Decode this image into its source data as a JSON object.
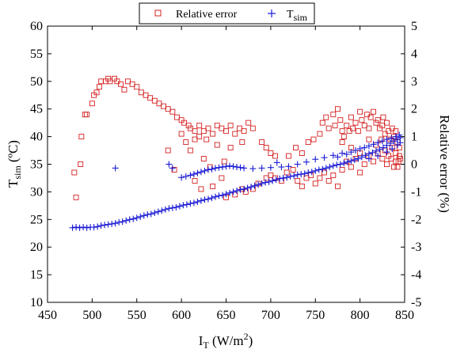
{
  "chart_data": {
    "type": "scatter",
    "xlabel": "I",
    "xlabel_sub": "T",
    "xlabel_unit": " (W/m",
    "xlabel_sup": "2",
    "xlabel_close": ")",
    "ylabel_left": "T",
    "ylabel_left_sub": "sim",
    "ylabel_left_unit": " (ºC)",
    "ylabel_right": "Relative error (%)",
    "xlim": [
      450,
      850
    ],
    "ylim_left": [
      10,
      60
    ],
    "ylim_right": [
      -5,
      5
    ],
    "xticks": [
      "450",
      "500",
      "550",
      "600",
      "650",
      "700",
      "750",
      "800",
      "850"
    ],
    "yticks_left": [
      "10",
      "15",
      "20",
      "25",
      "30",
      "35",
      "40",
      "45",
      "50",
      "55",
      "60"
    ],
    "yticks_right": [
      "-5",
      "-4",
      "-3",
      "-2",
      "-1",
      "0",
      "1",
      "2",
      "3",
      "4",
      "5"
    ],
    "grid": false,
    "legend_position": "top-center",
    "series": [
      {
        "name": "Relative error",
        "name_sub": "",
        "axis": "right",
        "marker": "square",
        "color": "#d42020",
        "points": [
          [
            480,
            -0.3
          ],
          [
            482,
            -1.2
          ],
          [
            487,
            0.0
          ],
          [
            488,
            1.0
          ],
          [
            492,
            1.8
          ],
          [
            494,
            1.8
          ],
          [
            500,
            2.2
          ],
          [
            502,
            2.5
          ],
          [
            505,
            2.6
          ],
          [
            508,
            2.8
          ],
          [
            510,
            3.0
          ],
          [
            515,
            3.0
          ],
          [
            518,
            3.1
          ],
          [
            520,
            3.0
          ],
          [
            525,
            3.1
          ],
          [
            528,
            3.0
          ],
          [
            532,
            2.9
          ],
          [
            536,
            2.7
          ],
          [
            540,
            3.0
          ],
          [
            545,
            2.9
          ],
          [
            550,
            2.8
          ],
          [
            555,
            2.6
          ],
          [
            560,
            2.5
          ],
          [
            565,
            2.4
          ],
          [
            570,
            2.3
          ],
          [
            575,
            2.2
          ],
          [
            580,
            2.1
          ],
          [
            585,
            2.0
          ],
          [
            590,
            1.9
          ],
          [
            595,
            1.7
          ],
          [
            600,
            1.6
          ],
          [
            603,
            1.5
          ],
          [
            608,
            1.4
          ],
          [
            610,
            1.3
          ],
          [
            615,
            1.2
          ],
          [
            620,
            1.4
          ],
          [
            625,
            1.2
          ],
          [
            630,
            1.3
          ],
          [
            635,
            1.1
          ],
          [
            640,
            1.4
          ],
          [
            645,
            1.3
          ],
          [
            650,
            1.2
          ],
          [
            655,
            1.4
          ],
          [
            660,
            1.1
          ],
          [
            665,
            1.3
          ],
          [
            670,
            1.2
          ],
          [
            675,
            1.5
          ],
          [
            680,
            1.3
          ],
          [
            600,
            1.1
          ],
          [
            605,
            0.8
          ],
          [
            615,
            0.9
          ],
          [
            620,
            1.0
          ],
          [
            628,
            0.9
          ],
          [
            640,
            0.7
          ],
          [
            655,
            0.6
          ],
          [
            668,
            0.8
          ],
          [
            690,
            0.8
          ],
          [
            695,
            0.6
          ],
          [
            700,
            0.4
          ],
          [
            705,
            0.3
          ],
          [
            585,
            0.5
          ],
          [
            592,
            -0.2
          ],
          [
            610,
            0.5
          ],
          [
            625,
            0.2
          ],
          [
            632,
            -0.1
          ],
          [
            648,
            0.1
          ],
          [
            615,
            -0.6
          ],
          [
            622,
            -0.9
          ],
          [
            635,
            -0.8
          ],
          [
            645,
            -0.5
          ],
          [
            650,
            -1.2
          ],
          [
            660,
            -1.1
          ],
          [
            668,
            -0.9
          ],
          [
            672,
            -1.0
          ],
          [
            680,
            -0.9
          ],
          [
            686,
            -0.7
          ],
          [
            695,
            -0.5
          ],
          [
            700,
            -0.4
          ],
          [
            705,
            -0.5
          ],
          [
            712,
            -0.6
          ],
          [
            718,
            -0.3
          ],
          [
            725,
            -0.2
          ],
          [
            730,
            -0.6
          ],
          [
            735,
            -0.8
          ],
          [
            740,
            -0.5
          ],
          [
            745,
            -0.4
          ],
          [
            750,
            -0.7
          ],
          [
            755,
            -0.5
          ],
          [
            760,
            -0.3
          ],
          [
            765,
            -0.6
          ],
          [
            720,
            0.3
          ],
          [
            728,
            0.6
          ],
          [
            735,
            0.4
          ],
          [
            742,
            0.8
          ],
          [
            748,
            0.9
          ],
          [
            755,
            1.1
          ],
          [
            758,
            1.5
          ],
          [
            762,
            1.7
          ],
          [
            765,
            1.3
          ],
          [
            770,
            1.8
          ],
          [
            772,
            1.4
          ],
          [
            775,
            2.0
          ],
          [
            778,
            1.6
          ],
          [
            780,
            1.2
          ],
          [
            782,
            1.0
          ],
          [
            785,
            1.4
          ],
          [
            788,
            1.2
          ],
          [
            790,
            1.7
          ],
          [
            792,
            1.3
          ],
          [
            795,
            1.5
          ],
          [
            798,
            1.2
          ],
          [
            800,
            1.9
          ],
          [
            802,
            1.6
          ],
          [
            805,
            1.4
          ],
          [
            808,
            1.8
          ],
          [
            810,
            1.3
          ],
          [
            812,
            1.7
          ],
          [
            815,
            1.9
          ],
          [
            818,
            1.5
          ],
          [
            820,
            1.6
          ],
          [
            822,
            1.3
          ],
          [
            825,
            1.4
          ],
          [
            826,
            1.7
          ],
          [
            828,
            1.1
          ],
          [
            830,
            1.5
          ],
          [
            832,
            1.2
          ],
          [
            834,
            0.9
          ],
          [
            836,
            1.3
          ],
          [
            838,
            1.0
          ],
          [
            840,
            1.2
          ],
          [
            842,
            0.8
          ],
          [
            844,
            0.6
          ],
          [
            780,
            0.8
          ],
          [
            790,
            0.6
          ],
          [
            800,
            0.4
          ],
          [
            810,
            0.9
          ],
          [
            818,
            0.7
          ],
          [
            824,
            0.9
          ],
          [
            828,
            0.5
          ],
          [
            832,
            0.3
          ],
          [
            836,
            0.6
          ],
          [
            840,
            0.1
          ],
          [
            842,
            -0.1
          ],
          [
            844,
            0.3
          ],
          [
            770,
            -0.4
          ],
          [
            775,
            -0.8
          ],
          [
            780,
            -0.2
          ],
          [
            785,
            0.1
          ],
          [
            790,
            -0.1
          ],
          [
            795,
            0.2
          ],
          [
            800,
            -0.3
          ],
          [
            805,
            0.0
          ],
          [
            810,
            0.3
          ],
          [
            815,
            0.1
          ],
          [
            820,
            0.4
          ],
          [
            825,
            0.2
          ],
          [
            830,
            0.0
          ],
          [
            835,
            0.2
          ],
          [
            838,
            -0.1
          ],
          [
            840,
            0.4
          ],
          [
            843,
            0.1
          ],
          [
            845,
            0.2
          ]
        ]
      },
      {
        "name": "T",
        "name_sub": "sim",
        "axis": "left",
        "marker": "plus",
        "color": "#1a1ad4",
        "points": [
          [
            478,
            23.5
          ],
          [
            482,
            23.6
          ],
          [
            486,
            23.5
          ],
          [
            490,
            23.6
          ],
          [
            494,
            23.5
          ],
          [
            498,
            23.6
          ],
          [
            502,
            23.6
          ],
          [
            506,
            23.7
          ],
          [
            510,
            23.9
          ],
          [
            514,
            24.0
          ],
          [
            518,
            24.1
          ],
          [
            522,
            24.2
          ],
          [
            526,
            24.3
          ],
          [
            530,
            24.5
          ],
          [
            534,
            24.6
          ],
          [
            538,
            24.8
          ],
          [
            542,
            25.0
          ],
          [
            546,
            25.1
          ],
          [
            550,
            25.3
          ],
          [
            554,
            25.5
          ],
          [
            558,
            25.7
          ],
          [
            562,
            25.9
          ],
          [
            566,
            26.0
          ],
          [
            570,
            26.2
          ],
          [
            574,
            26.4
          ],
          [
            578,
            26.6
          ],
          [
            582,
            26.8
          ],
          [
            586,
            27.0
          ],
          [
            590,
            27.1
          ],
          [
            594,
            27.2
          ],
          [
            598,
            27.4
          ],
          [
            602,
            27.6
          ],
          [
            606,
            27.7
          ],
          [
            610,
            27.9
          ],
          [
            614,
            28.0
          ],
          [
            618,
            28.2
          ],
          [
            622,
            28.4
          ],
          [
            626,
            28.6
          ],
          [
            630,
            28.7
          ],
          [
            634,
            28.9
          ],
          [
            638,
            29.1
          ],
          [
            642,
            29.3
          ],
          [
            646,
            29.4
          ],
          [
            650,
            29.6
          ],
          [
            654,
            29.8
          ],
          [
            658,
            30.0
          ],
          [
            662,
            30.2
          ],
          [
            666,
            30.4
          ],
          [
            670,
            30.5
          ],
          [
            674,
            30.7
          ],
          [
            678,
            30.9
          ],
          [
            682,
            31.1
          ],
          [
            686,
            31.3
          ],
          [
            690,
            31.5
          ],
          [
            694,
            31.7
          ],
          [
            698,
            31.8
          ],
          [
            702,
            32.0
          ],
          [
            706,
            32.2
          ],
          [
            710,
            32.4
          ],
          [
            714,
            32.5
          ],
          [
            718,
            32.6
          ],
          [
            722,
            32.8
          ],
          [
            726,
            32.9
          ],
          [
            730,
            33.1
          ],
          [
            734,
            33.2
          ],
          [
            738,
            33.3
          ],
          [
            742,
            33.5
          ],
          [
            746,
            33.6
          ],
          [
            750,
            33.8
          ],
          [
            754,
            34.0
          ],
          [
            758,
            34.1
          ],
          [
            762,
            34.3
          ],
          [
            766,
            34.5
          ],
          [
            770,
            34.7
          ],
          [
            774,
            34.9
          ],
          [
            778,
            35.0
          ],
          [
            782,
            35.2
          ],
          [
            786,
            35.4
          ],
          [
            790,
            35.6
          ],
          [
            794,
            35.8
          ],
          [
            798,
            36.0
          ],
          [
            802,
            36.3
          ],
          [
            806,
            36.6
          ],
          [
            810,
            36.9
          ],
          [
            814,
            37.1
          ],
          [
            818,
            37.4
          ],
          [
            822,
            37.7
          ],
          [
            826,
            38.0
          ],
          [
            830,
            38.4
          ],
          [
            834,
            38.8
          ],
          [
            838,
            39.2
          ],
          [
            842,
            39.5
          ],
          [
            845,
            39.8
          ],
          [
            526,
            34.3
          ],
          [
            586,
            35.0
          ],
          [
            590,
            34.3
          ],
          [
            600,
            32.6
          ],
          [
            605,
            32.8
          ],
          [
            610,
            33.0
          ],
          [
            614,
            33.2
          ],
          [
            618,
            33.4
          ],
          [
            622,
            33.6
          ],
          [
            626,
            33.8
          ],
          [
            630,
            34.0
          ],
          [
            634,
            34.1
          ],
          [
            638,
            34.3
          ],
          [
            642,
            34.4
          ],
          [
            646,
            34.5
          ],
          [
            650,
            34.6
          ],
          [
            654,
            34.7
          ],
          [
            658,
            34.6
          ],
          [
            662,
            34.5
          ],
          [
            666,
            34.4
          ],
          [
            670,
            34.3
          ],
          [
            680,
            34.2
          ],
          [
            690,
            34.3
          ],
          [
            700,
            34.4
          ],
          [
            707,
            35.3
          ],
          [
            712,
            34.5
          ],
          [
            720,
            34.6
          ],
          [
            730,
            35.0
          ],
          [
            740,
            35.4
          ],
          [
            750,
            35.9
          ],
          [
            760,
            36.2
          ],
          [
            770,
            36.6
          ],
          [
            775,
            36.3
          ],
          [
            780,
            37.0
          ],
          [
            785,
            36.8
          ],
          [
            790,
            37.2
          ],
          [
            795,
            37.5
          ],
          [
            800,
            37.8
          ],
          [
            805,
            38.0
          ],
          [
            810,
            38.3
          ],
          [
            815,
            38.6
          ],
          [
            820,
            38.9
          ],
          [
            825,
            39.2
          ],
          [
            830,
            39.5
          ],
          [
            835,
            39.7
          ],
          [
            840,
            40.0
          ],
          [
            844,
            40.3
          ],
          [
            810,
            36.0
          ],
          [
            820,
            36.5
          ],
          [
            830,
            37.2
          ],
          [
            836,
            37.8
          ],
          [
            842,
            38.5
          ],
          [
            845,
            38.9
          ]
        ]
      }
    ]
  }
}
